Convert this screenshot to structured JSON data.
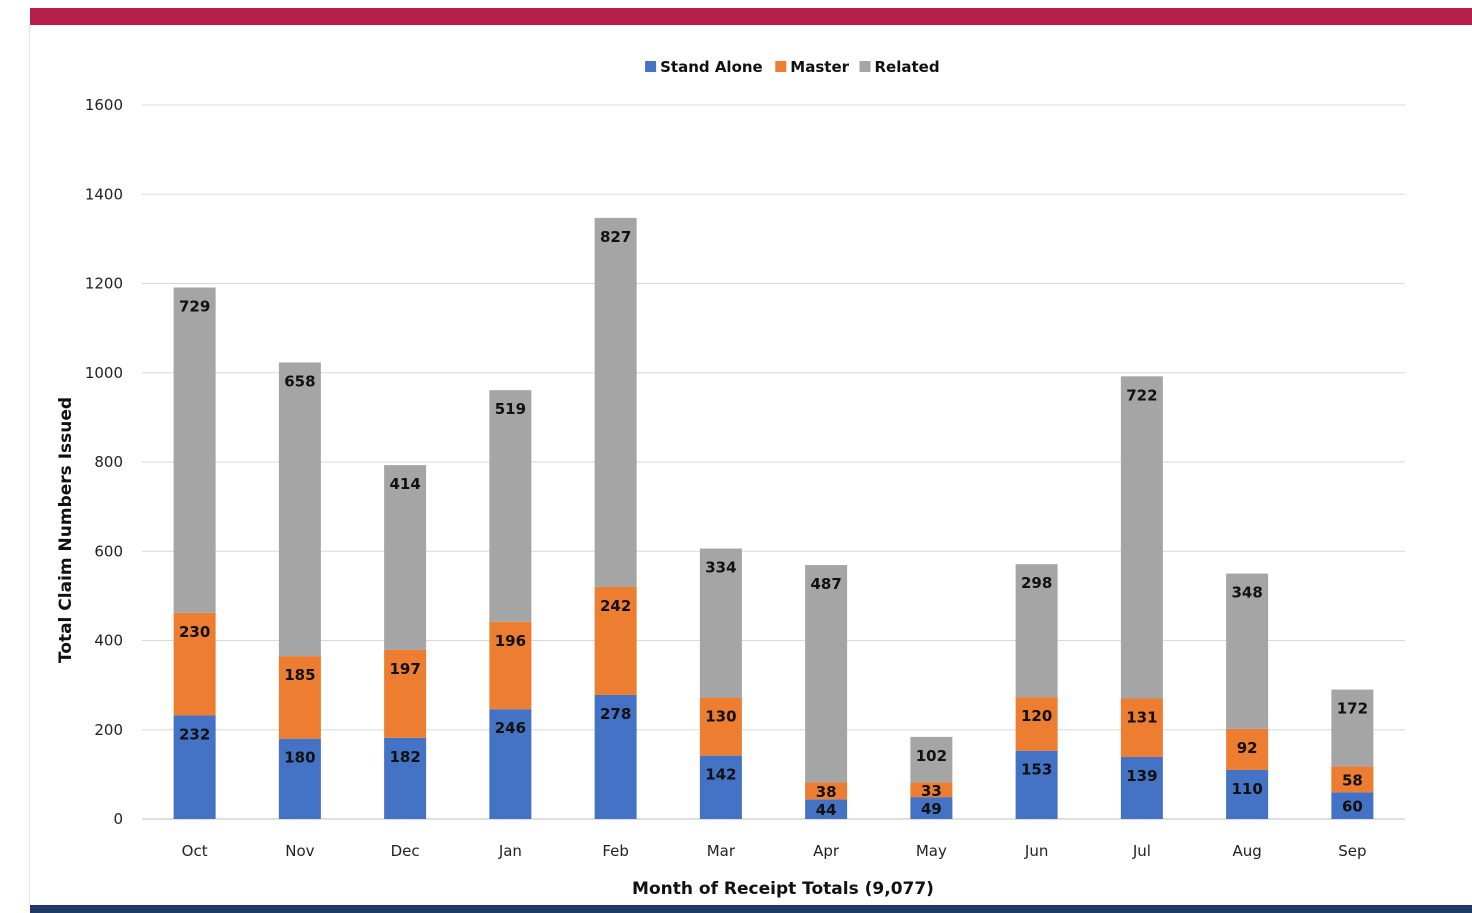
{
  "chart_data": {
    "type": "bar",
    "stacked": true,
    "categories": [
      "Oct",
      "Nov",
      "Dec",
      "Jan",
      "Feb",
      "Mar",
      "Apr",
      "May",
      "Jun",
      "Jul",
      "Aug",
      "Sep"
    ],
    "series": [
      {
        "name": "Stand Alone",
        "color": "#4472c4",
        "values": [
          232,
          180,
          182,
          246,
          278,
          142,
          44,
          49,
          153,
          139,
          110,
          60
        ]
      },
      {
        "name": "Master",
        "color": "#ed7d31",
        "values": [
          230,
          185,
          197,
          196,
          242,
          130,
          38,
          33,
          120,
          131,
          92,
          58
        ]
      },
      {
        "name": "Related",
        "color": "#a5a5a5",
        "values": [
          729,
          658,
          414,
          519,
          827,
          334,
          487,
          102,
          298,
          722,
          348,
          172
        ]
      }
    ],
    "xlabel": "Month of Receipt Totals (9,077)",
    "ylabel": "Total Claim Numbers Issued",
    "ylim": [
      0,
      1600
    ],
    "yticks": [
      0,
      200,
      400,
      600,
      800,
      1000,
      1200,
      1400,
      1600
    ],
    "grid": true,
    "legend": "top-center"
  }
}
